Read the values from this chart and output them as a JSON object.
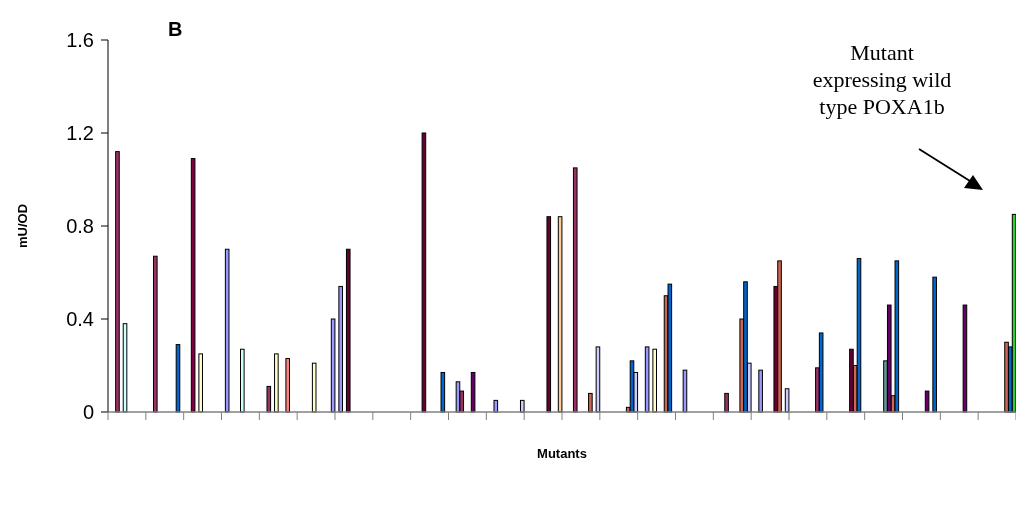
{
  "chart_data": {
    "type": "bar",
    "title": "B",
    "xlabel": "Mutants",
    "ylabel": "mU/OD",
    "annotations": [
      "Mutant\nexpressing wild\ntype POXA1b"
    ],
    "ylim": [
      0,
      1.6
    ],
    "yticks": [
      0,
      0.4,
      0.8,
      1.2,
      1.6
    ],
    "grid": false,
    "categories": [
      null,
      null,
      null,
      null,
      null,
      null,
      null,
      null,
      null,
      null,
      null,
      null,
      null,
      null,
      null,
      null,
      null,
      null,
      null,
      null,
      null,
      null,
      null,
      null,
      null,
      null,
      null,
      null,
      null,
      null,
      null,
      null,
      null,
      null,
      null,
      null,
      null,
      null,
      null,
      null,
      null,
      null,
      null,
      null,
      null,
      null,
      null,
      null,
      null,
      null,
      null,
      null,
      null,
      null,
      null,
      null,
      null,
      null,
      null,
      null,
      null,
      null,
      null,
      null,
      null,
      null,
      null,
      null,
      null,
      null,
      null,
      null,
      null,
      null,
      null,
      null,
      null,
      null,
      null,
      null,
      null,
      null,
      null,
      null,
      null,
      null,
      null,
      null,
      null,
      null,
      null,
      null,
      null,
      null,
      null,
      null,
      null,
      null,
      null,
      null,
      null,
      null,
      null,
      null,
      null,
      null,
      null,
      null,
      null,
      null,
      null,
      null,
      null,
      null,
      null,
      null,
      null,
      null,
      null,
      null,
      null,
      null,
      null,
      null,
      null,
      null,
      null,
      null,
      null,
      null,
      null,
      null,
      null,
      null,
      null,
      null,
      null,
      null,
      null,
      null,
      null,
      null,
      null,
      null,
      null,
      null,
      null,
      null,
      null,
      null,
      null,
      null,
      null,
      null,
      null,
      null,
      null,
      null,
      null,
      null,
      null,
      null,
      null,
      null,
      null,
      null,
      null,
      null,
      null,
      null,
      null,
      null,
      null,
      null,
      null,
      null,
      null,
      null,
      null,
      null,
      null,
      null,
      null,
      null,
      null,
      null,
      null,
      null,
      null,
      null,
      null,
      null,
      null,
      null,
      null,
      null,
      null,
      null,
      null,
      null,
      null,
      null,
      null,
      null,
      null,
      null,
      null,
      null,
      null,
      null,
      null,
      null,
      null,
      null,
      null,
      null,
      null,
      null,
      null,
      null,
      null,
      null,
      null,
      null,
      null,
      null,
      null,
      null,
      null,
      null,
      null,
      null,
      null,
      null,
      null,
      null,
      null,
      null,
      null,
      null
    ],
    "values": [
      null,
      null,
      1.12,
      null,
      0.38,
      null,
      null,
      null,
      null,
      null,
      null,
      null,
      0.67,
      null,
      null,
      null,
      null,
      null,
      0.29,
      null,
      null,
      null,
      1.09,
      null,
      0.25,
      null,
      null,
      null,
      null,
      null,
      null,
      0.7,
      null,
      null,
      null,
      0.27,
      null,
      null,
      null,
      null,
      null,
      null,
      0.11,
      null,
      0.25,
      null,
      null,
      0.23,
      null,
      null,
      null,
      null,
      null,
      null,
      0.21,
      null,
      null,
      null,
      null,
      0.4,
      null,
      0.54,
      null,
      0.7,
      null,
      null,
      null,
      null,
      null,
      null,
      null,
      null,
      null,
      null,
      null,
      null,
      null,
      null,
      null,
      null,
      null,
      null,
      null,
      1.2,
      null,
      null,
      null,
      null,
      0.17,
      null,
      null,
      null,
      0.13,
      0.09,
      null,
      null,
      0.17,
      null,
      null,
      null,
      null,
      null,
      0.05,
      null,
      null,
      null,
      null,
      null,
      null,
      0.05,
      null,
      null,
      null,
      null,
      null,
      null,
      0.84,
      null,
      null,
      0.84,
      null,
      null,
      null,
      1.05,
      null,
      null,
      null,
      0.08,
      null,
      0.28,
      null,
      null,
      null,
      null,
      null,
      null,
      null,
      0.02,
      0.22,
      0.17,
      null,
      null,
      0.28,
      null,
      0.27,
      null,
      null,
      0.5,
      0.55,
      null,
      null,
      null,
      0.18,
      null,
      null,
      null,
      null,
      null,
      null,
      null,
      null,
      null,
      null,
      0.08,
      null,
      null,
      null,
      0.4,
      0.56,
      0.21,
      null,
      null,
      0.18,
      null,
      null,
      null,
      0.54,
      0.65,
      null,
      0.1,
      null,
      null,
      null,
      null,
      null,
      null,
      null,
      0.19,
      0.34,
      null,
      null,
      null,
      null,
      null,
      null,
      null,
      0.27,
      0.2,
      0.66,
      null,
      null,
      null,
      null,
      null,
      null,
      0.22,
      0.46,
      0.07,
      0.65,
      null,
      null,
      null,
      null,
      null,
      null,
      null,
      0.09,
      null,
      0.58,
      null,
      null,
      null,
      null,
      null,
      null,
      null,
      0.46,
      null,
      null,
      null,
      null,
      null,
      null,
      null,
      null,
      null,
      null,
      0.3,
      0.28,
      0.85
    ],
    "colors": [
      null,
      null,
      "#993366",
      null,
      "#ccffff",
      null,
      null,
      null,
      null,
      null,
      null,
      null,
      "#993366",
      null,
      null,
      null,
      null,
      null,
      "#0066cc",
      null,
      null,
      null,
      "#800040",
      null,
      "#ffffcc",
      null,
      null,
      null,
      null,
      null,
      null,
      "#9999ff",
      null,
      null,
      null,
      "#ccffff",
      null,
      null,
      null,
      null,
      null,
      null,
      "#993366",
      null,
      "#ffffcc",
      null,
      null,
      "#ff8080",
      null,
      null,
      null,
      null,
      null,
      null,
      "#ffffcc",
      null,
      null,
      null,
      null,
      "#9999ff",
      null,
      "#9999ff",
      null,
      "#660033",
      null,
      null,
      null,
      null,
      null,
      null,
      null,
      null,
      null,
      null,
      null,
      null,
      null,
      null,
      null,
      null,
      null,
      null,
      null,
      "#660033",
      null,
      null,
      null,
      null,
      "#0066cc",
      null,
      null,
      null,
      "#9999ff",
      "#993366",
      null,
      null,
      "#660066",
      null,
      null,
      null,
      null,
      null,
      "#9999ff",
      null,
      null,
      null,
      null,
      null,
      null,
      "#ccccff",
      null,
      null,
      null,
      null,
      null,
      null,
      "#660033",
      null,
      null,
      "#ffcc99",
      null,
      null,
      null,
      "#993366",
      null,
      null,
      null,
      "#cc6655",
      null,
      "#ccccff",
      null,
      null,
      null,
      null,
      null,
      null,
      null,
      "#cc6655",
      "#0066cc",
      "#ccccff",
      null,
      null,
      "#9999ff",
      null,
      "#ffffcc",
      null,
      null,
      "#cc6655",
      "#0066cc",
      null,
      null,
      null,
      "#9999ff",
      null,
      null,
      null,
      null,
      null,
      null,
      null,
      null,
      null,
      null,
      "#993366",
      null,
      null,
      null,
      "#cc6655",
      "#0066cc",
      "#ccccff",
      null,
      null,
      "#9999ff",
      null,
      null,
      null,
      "#660033",
      "#cc6655",
      null,
      "#ccccff",
      null,
      null,
      null,
      null,
      null,
      null,
      null,
      "#993366",
      "#0066cc",
      null,
      null,
      null,
      null,
      null,
      null,
      null,
      "#660033",
      "#cc6655",
      "#0066cc",
      null,
      null,
      null,
      null,
      null,
      null,
      "#669999",
      "#660066",
      "#cc6655",
      "#0066cc",
      null,
      null,
      null,
      null,
      null,
      null,
      null,
      "#660066",
      null,
      "#0066cc",
      null,
      null,
      null,
      null,
      null,
      null,
      null,
      "#660066",
      null,
      null,
      null,
      null,
      null,
      null,
      null,
      null,
      null,
      null,
      "#cc6655",
      "#0066cc",
      "#33cc33"
    ]
  }
}
